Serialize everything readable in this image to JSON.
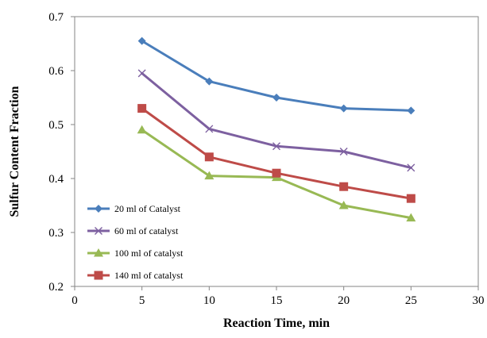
{
  "chart_data": {
    "type": "line",
    "title": "",
    "xlabel": "Reaction Time, min",
    "ylabel": "Sulfur Content Fraction",
    "xlim": [
      0,
      30
    ],
    "ylim": [
      0.2,
      0.7
    ],
    "xticks": [
      0,
      5,
      10,
      15,
      20,
      25,
      30
    ],
    "xtick_labels": [
      "0",
      "5",
      "10",
      "15",
      "20",
      "25",
      "30"
    ],
    "yticks": [
      0.2,
      0.3,
      0.4,
      0.5,
      0.6,
      0.7
    ],
    "ytick_labels": [
      "0.2",
      "0.3",
      "0.4",
      "0.5",
      "0.6",
      "0.7"
    ],
    "grid": false,
    "legend_position": "bottom-left",
    "x": [
      5,
      10,
      15,
      20,
      25
    ],
    "series": [
      {
        "name": "20 ml of Catalyst",
        "values": [
          0.655,
          0.58,
          0.55,
          0.53,
          0.526
        ],
        "color": "#4a7ebb",
        "marker": "diamond"
      },
      {
        "name": "60 ml of catalyst",
        "values": [
          0.595,
          0.492,
          0.46,
          0.45,
          0.42
        ],
        "color": "#7d60a0",
        "marker": "x"
      },
      {
        "name": "100 ml of catalyst",
        "values": [
          0.49,
          0.405,
          0.402,
          0.35,
          0.327
        ],
        "color": "#98b954",
        "marker": "triangle"
      },
      {
        "name": "140 ml of catalyst",
        "values": [
          0.53,
          0.44,
          0.41,
          0.385,
          0.363
        ],
        "color": "#be4b48",
        "marker": "square"
      }
    ]
  }
}
